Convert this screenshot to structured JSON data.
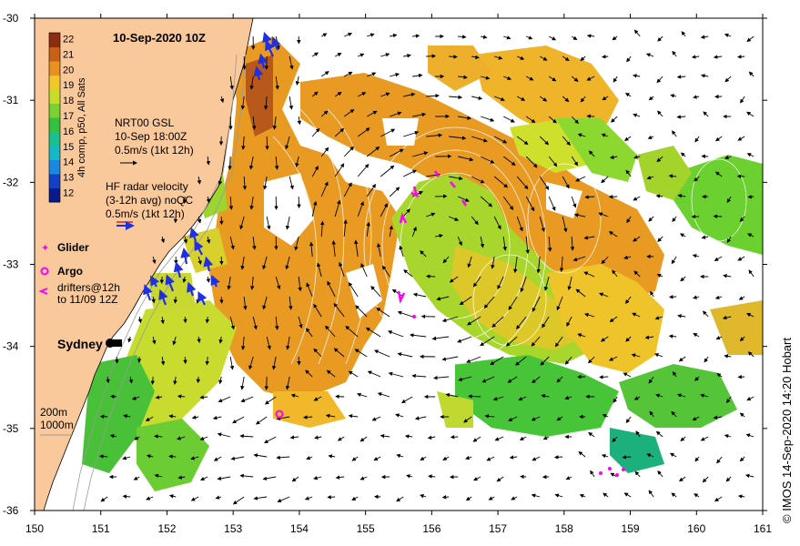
{
  "title": "10-Sep-2020 10Z",
  "colorbar": {
    "label": "4h comp, p50, All Sats",
    "ticks": [
      "12",
      "13",
      "14",
      "15",
      "16",
      "17",
      "18",
      "19",
      "20",
      "21",
      "22"
    ],
    "colors": [
      "#0a1a8c",
      "#1240c8",
      "#1a88e0",
      "#16b8c8",
      "#1cc090",
      "#34c040",
      "#7cd030",
      "#c8dc2c",
      "#f0c828",
      "#e89020",
      "#c86018",
      "#8c2c10"
    ]
  },
  "gsl": {
    "line1": "NRT00 GSL",
    "line2": "10-Sep 18:00Z",
    "line3": "0.5m/s (1kt 12h)"
  },
  "hf_radar": {
    "line1": "HF radar velocity",
    "line2": "(3-12h avg) noQC",
    "line3": "0.5m/s (1kt 12h)"
  },
  "legend": {
    "glider": "Glider",
    "argo": "Argo",
    "drifters1": "drifters@12h",
    "drifters2": "to 11/09 12Z"
  },
  "city": "Sydney",
  "isobaths": {
    "a": "200m",
    "b": "1000m"
  },
  "credit": "© IMOS 14-Sep-2020 14:20 Hobart",
  "axes": {
    "lat_labels": [
      "-30",
      "-31",
      "-32",
      "-33",
      "-34",
      "-35",
      "-36"
    ],
    "lon_labels": [
      "150",
      "151",
      "152",
      "153",
      "154",
      "155",
      "156",
      "157",
      "158",
      "159",
      "160",
      "161"
    ]
  },
  "colors": {
    "land": "#f9c89b",
    "glider": "#ff00ff",
    "argo": "#ff00ff",
    "drifter": "#ff00ff",
    "radar": "#2030e0"
  }
}
